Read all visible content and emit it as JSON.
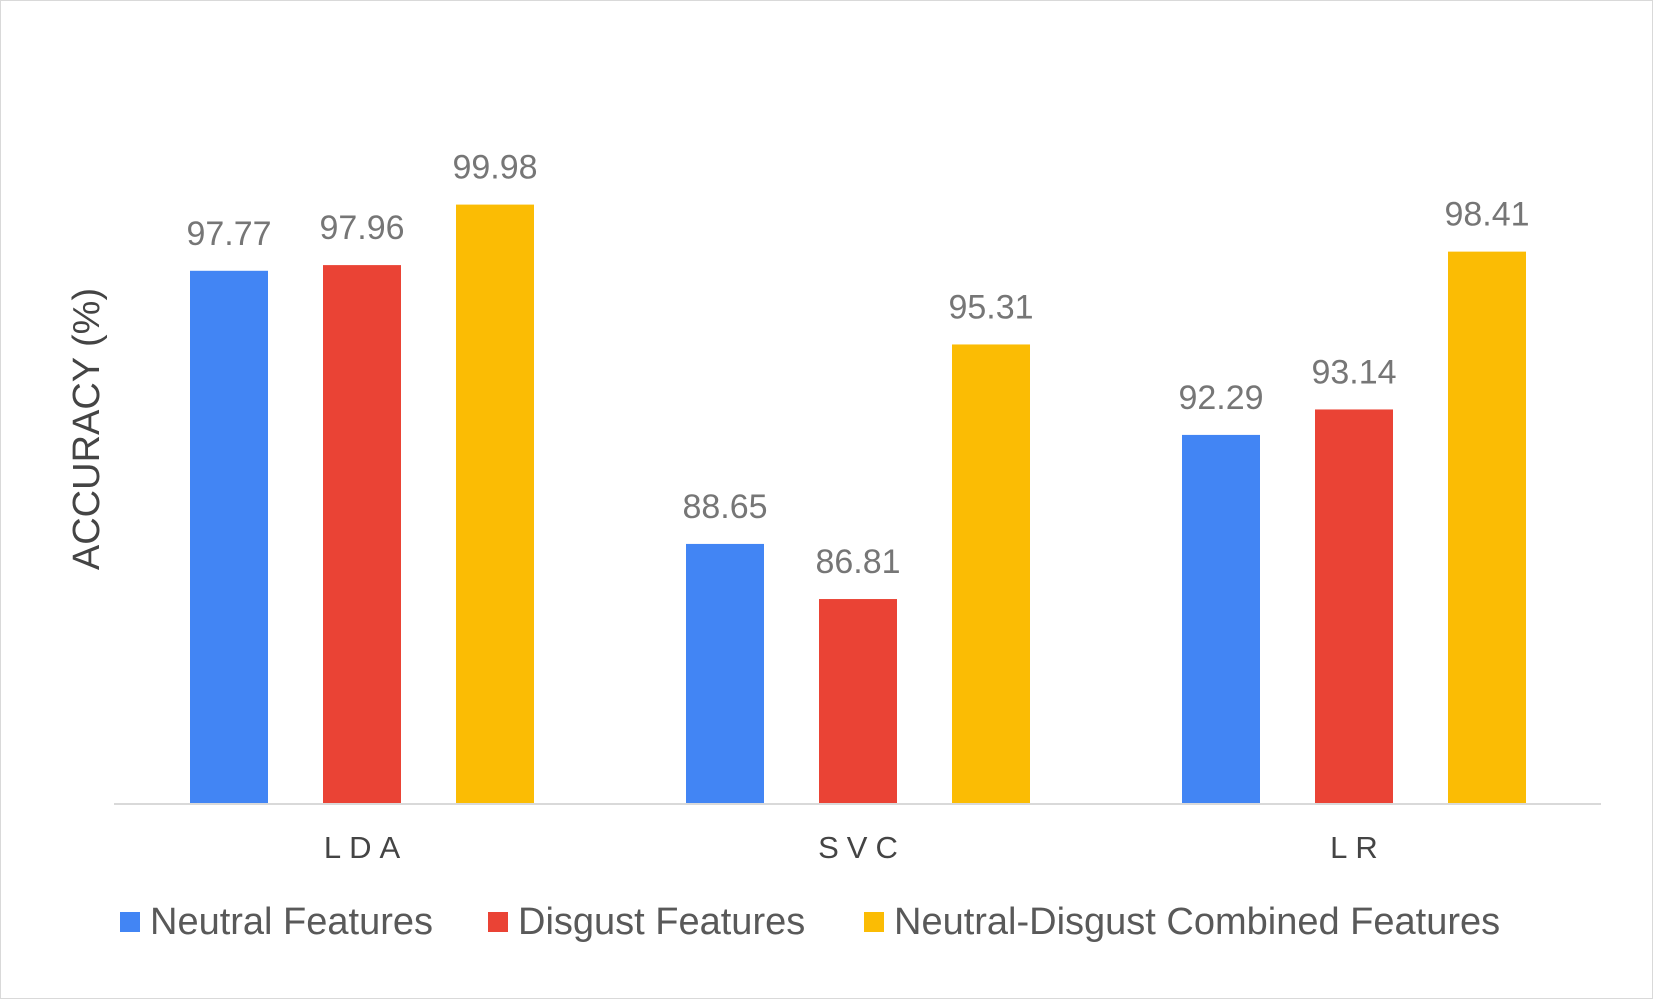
{
  "chart_data": {
    "type": "bar",
    "categories": [
      "LDA",
      "SVC",
      "LR"
    ],
    "series": [
      {
        "name": "Neutral Features",
        "values": [
          97.77,
          88.65,
          92.29
        ],
        "color": "#4285F4"
      },
      {
        "name": "Disgust Features",
        "values": [
          97.96,
          86.81,
          93.14
        ],
        "color": "#EA4335"
      },
      {
        "name": "Neutral-Disgust Combined Features",
        "values": [
          99.98,
          95.31,
          98.41
        ],
        "color": "#FBBC04"
      }
    ],
    "title": "",
    "xlabel": "",
    "ylabel": "ACCURACY (%)",
    "ylim": [
      80,
      100
    ],
    "grid": false,
    "legend_position": "bottom",
    "data_labels": true
  }
}
